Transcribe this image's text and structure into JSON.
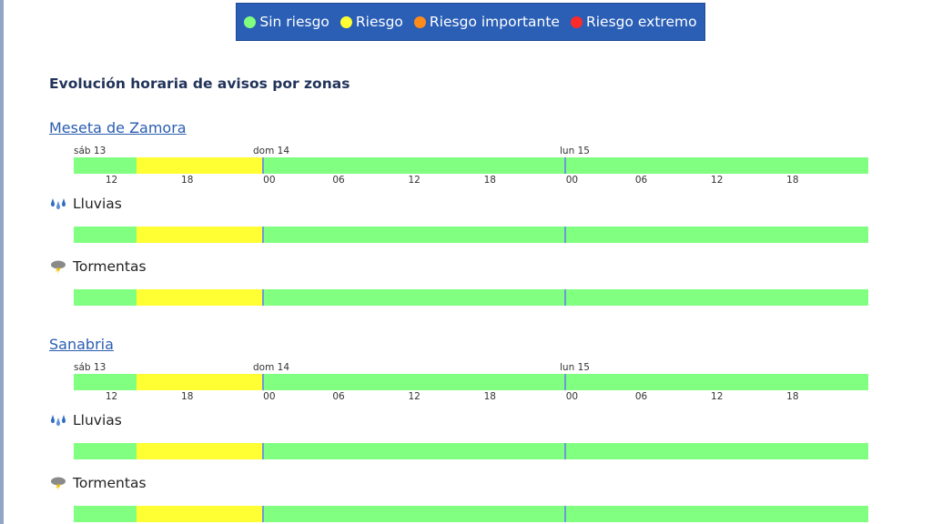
{
  "legend": {
    "items": [
      {
        "label": "Sin riesgo",
        "color": "#80ff80"
      },
      {
        "label": "Riesgo",
        "color": "#ffff33"
      },
      {
        "label": "Riesgo importante",
        "color": "#ff8c1a"
      },
      {
        "label": "Riesgo extremo",
        "color": "#ff2a2a"
      }
    ]
  },
  "section_title": "Evolución horaria de avisos por zonas",
  "zones": [
    {
      "name": "Meseta de Zamora",
      "days": [
        "sáb 13",
        "dom 14",
        "lun 15"
      ],
      "ticks": [
        "12",
        "18",
        "00",
        "06",
        "12",
        "18",
        "00",
        "06",
        "12",
        "18"
      ],
      "rows": [
        {
          "label": "Lluvias",
          "icon": "rain-icon"
        },
        {
          "label": "Tormentas",
          "icon": "storm-icon"
        }
      ]
    },
    {
      "name": "Sanabria",
      "days": [
        "sáb 13",
        "dom 14",
        "lun 15"
      ],
      "ticks": [
        "12",
        "18",
        "00",
        "06",
        "12",
        "18",
        "00",
        "06",
        "12",
        "18"
      ],
      "rows": [
        {
          "label": "Lluvias",
          "icon": "rain-icon"
        },
        {
          "label": "Tormentas",
          "icon": "storm-icon"
        }
      ]
    }
  ],
  "timeline": {
    "segments": [
      {
        "level": "Sin riesgo",
        "color": "#80ff80",
        "from_hour": 9,
        "to_hour": 14
      },
      {
        "level": "Riesgo",
        "color": "#ffff33",
        "from_hour": 14,
        "to_hour": 24
      },
      {
        "level": "Sin riesgo",
        "color": "#80ff80",
        "from_hour": 24,
        "to_hour": 72
      }
    ]
  }
}
